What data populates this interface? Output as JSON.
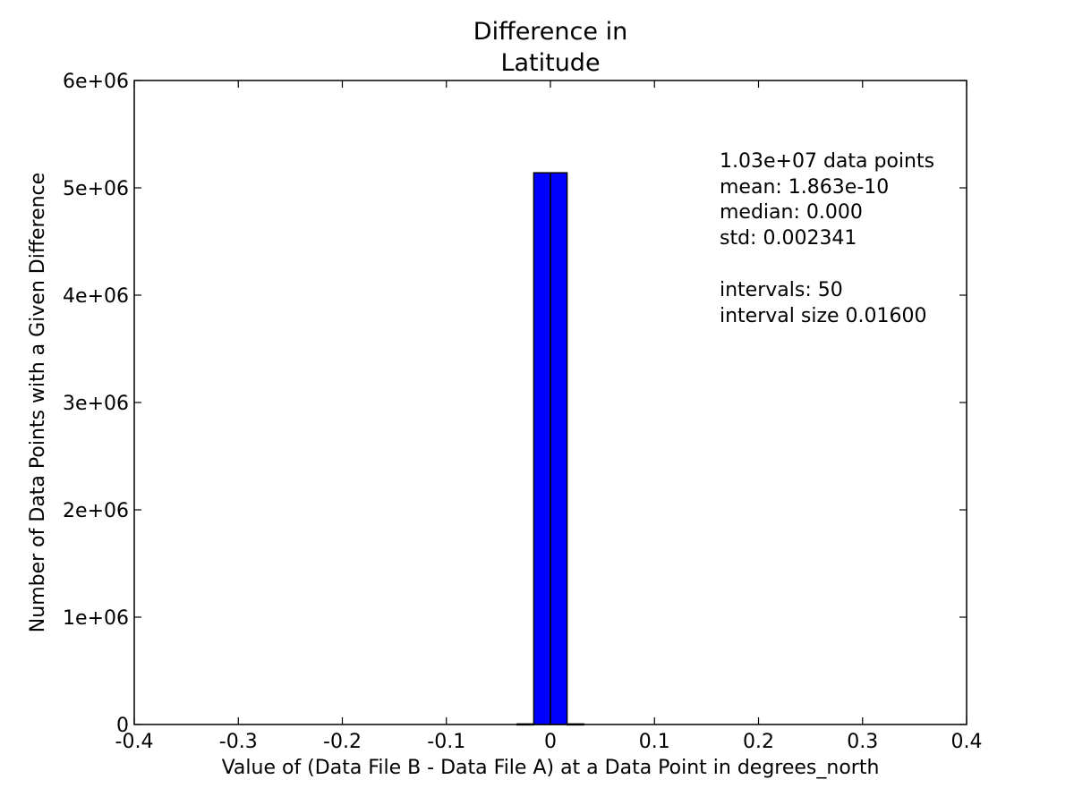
{
  "chart_data": {
    "type": "bar",
    "title": "Difference in Latitude",
    "title_lines": [
      "Difference in",
      "Latitude"
    ],
    "xlabel": "Value of (Data File B - Data File A) at a Data Point in degrees_north",
    "ylabel": "Number of Data Points with a Given Difference",
    "xlim": [
      -0.4,
      0.4
    ],
    "ylim": [
      0,
      6000000
    ],
    "x_ticks": [
      -0.4,
      -0.3,
      -0.2,
      -0.1,
      0,
      0.1,
      0.2,
      0.3,
      0.4
    ],
    "x_tick_labels": [
      "-0.4",
      "-0.3",
      "-0.2",
      "-0.1",
      "0",
      "0.1",
      "0.2",
      "0.3",
      "0.4"
    ],
    "y_ticks": [
      0,
      1000000,
      2000000,
      3000000,
      4000000,
      5000000,
      6000000
    ],
    "y_tick_labels": [
      "0",
      "1e+06",
      "2e+06",
      "3e+06",
      "4e+06",
      "5e+06",
      "6e+06"
    ],
    "bin_width": 0.016,
    "bins": [
      {
        "x_start": -0.032,
        "x_end": -0.016,
        "value": 5000
      },
      {
        "x_start": -0.016,
        "x_end": 0.0,
        "value": 5140000
      },
      {
        "x_start": 0.0,
        "x_end": 0.016,
        "value": 5140000
      },
      {
        "x_start": 0.016,
        "x_end": 0.032,
        "value": 5000
      }
    ],
    "bar_color": "#0000ff",
    "edge_color": "#000000",
    "grid": false,
    "annotation_lines": [
      "1.03e+07 data points",
      "mean: 1.863e-10",
      "median: 0.000",
      "std: 0.002341",
      "",
      "intervals: 50",
      "interval size 0.01600"
    ]
  }
}
